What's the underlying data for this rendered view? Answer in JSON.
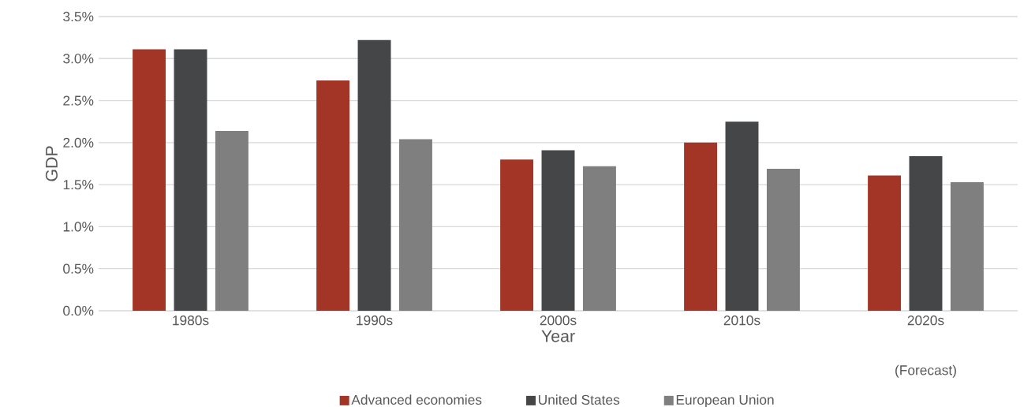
{
  "chart_data": {
    "type": "bar",
    "xlabel": "Year",
    "ylabel": "GDP",
    "categories": [
      "1980s",
      "1990s",
      "2000s",
      "2010s",
      "2020s"
    ],
    "series": [
      {
        "name": "Advanced economies",
        "color": "#a33526",
        "values": [
          3.11,
          2.74,
          1.8,
          2.0,
          1.61
        ]
      },
      {
        "name": "United States",
        "color": "#454648",
        "values": [
          3.11,
          3.22,
          1.91,
          2.25,
          1.84
        ]
      },
      {
        "name": "European Union",
        "color": "#7f7f7f",
        "values": [
          2.14,
          2.04,
          1.72,
          1.69,
          1.53
        ]
      }
    ],
    "ylim": [
      0,
      3.5
    ],
    "yticks": [
      {
        "value": 0,
        "label": "0.0%"
      },
      {
        "value": 0.5,
        "label": "0.5%"
      },
      {
        "value": 1,
        "label": "1.0%"
      },
      {
        "value": 1.5,
        "label": "1.5%"
      },
      {
        "value": 2,
        "label": "2.0%"
      },
      {
        "value": 2.5,
        "label": "2.5%"
      },
      {
        "value": 3,
        "label": "3.0%"
      },
      {
        "value": 3.5,
        "label": "3.5%"
      }
    ],
    "grid": "y",
    "legend": "bottom",
    "annotations": [
      "(Forecast)"
    ]
  }
}
